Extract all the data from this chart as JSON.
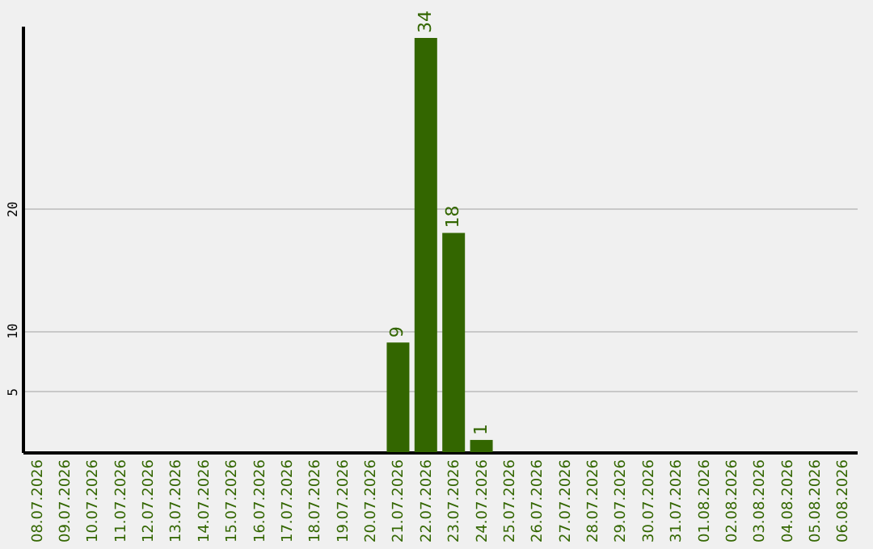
{
  "chart_data": {
    "type": "bar",
    "categories": [
      "08.07.2026",
      "09.07.2026",
      "10.07.2026",
      "11.07.2026",
      "12.07.2026",
      "13.07.2026",
      "14.07.2026",
      "15.07.2026",
      "16.07.2026",
      "17.07.2026",
      "18.07.2026",
      "19.07.2026",
      "20.07.2026",
      "21.07.2026",
      "22.07.2026",
      "23.07.2026",
      "24.07.2026",
      "25.07.2026",
      "26.07.2026",
      "27.07.2026",
      "28.07.2026",
      "29.07.2026",
      "30.07.2026",
      "31.07.2026",
      "01.08.2026",
      "02.08.2026",
      "03.08.2026",
      "04.08.2026",
      "05.08.2026",
      "06.08.2026"
    ],
    "values": [
      0,
      0,
      0,
      0,
      0,
      0,
      0,
      0,
      0,
      0,
      0,
      0,
      0,
      9,
      34,
      18,
      1,
      0,
      0,
      0,
      0,
      0,
      0,
      0,
      0,
      0,
      0,
      0,
      0,
      0
    ],
    "value_labels": [
      null,
      null,
      null,
      null,
      null,
      null,
      null,
      null,
      null,
      null,
      null,
      null,
      null,
      "9",
      "34",
      "18",
      "1",
      null,
      null,
      null,
      null,
      null,
      null,
      null,
      null,
      null,
      null,
      null,
      null,
      null
    ],
    "color": "#336600",
    "ylim": [
      0,
      35
    ],
    "yticks": [
      5,
      10,
      20
    ],
    "grid": "y"
  }
}
